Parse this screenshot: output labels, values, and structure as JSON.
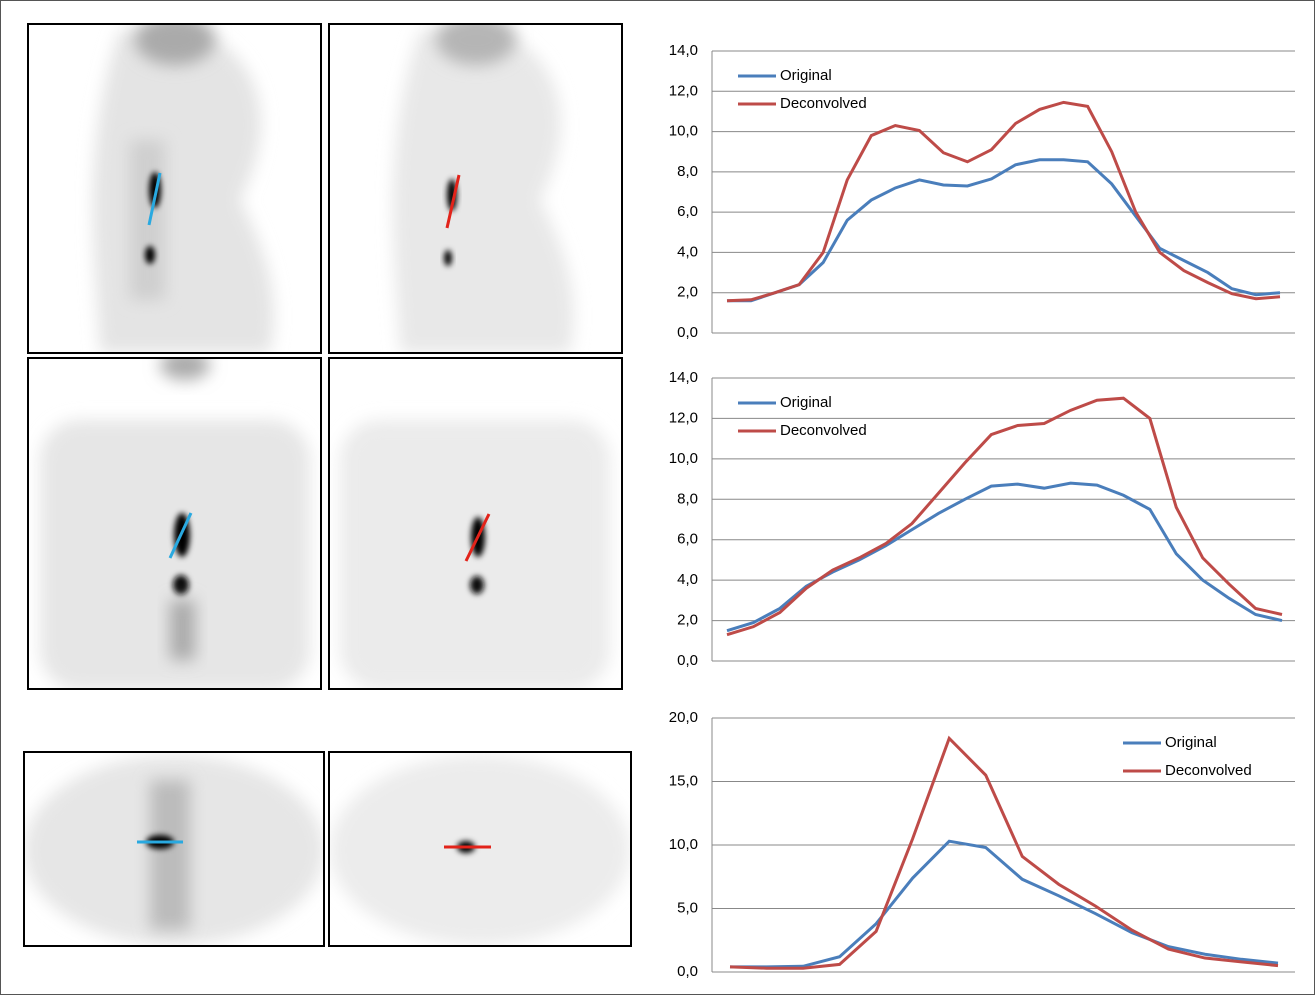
{
  "chart_data": [
    {
      "type": "line",
      "legend": "upper left",
      "grid": true,
      "categories": [
        null,
        null,
        null,
        null,
        null,
        null,
        null,
        null,
        null,
        null,
        null,
        null,
        null,
        null,
        null,
        null,
        null,
        null,
        null,
        null,
        null,
        null,
        null,
        null
      ],
      "series": [
        {
          "name": "Original",
          "color": "#4a7ebb",
          "values": [
            1.6,
            1.6,
            2.0,
            2.4,
            3.5,
            5.6,
            6.6,
            7.2,
            7.6,
            7.35,
            7.3,
            7.65,
            8.35,
            8.6,
            8.6,
            8.5,
            7.4,
            5.8,
            4.2,
            3.6,
            3.0,
            2.2,
            1.9,
            2.0
          ]
        },
        {
          "name": "Deconvolved",
          "color": "#be4b48",
          "values": [
            1.6,
            1.65,
            2.0,
            2.4,
            4.0,
            7.6,
            9.8,
            10.3,
            10.05,
            8.95,
            8.5,
            9.1,
            10.4,
            11.1,
            11.45,
            11.25,
            9.0,
            6.0,
            4.0,
            3.1,
            2.5,
            1.95,
            1.7,
            1.8
          ]
        }
      ],
      "ylim": [
        0,
        14
      ],
      "yticks": [
        {
          "value": 0,
          "label": "0,0"
        },
        {
          "value": 2,
          "label": "2,0"
        },
        {
          "value": 4,
          "label": "4,0"
        },
        {
          "value": 6,
          "label": "6,0"
        },
        {
          "value": 8,
          "label": "8,0"
        },
        {
          "value": 10,
          "label": "10,0"
        },
        {
          "value": 12,
          "label": "12,0"
        },
        {
          "value": 14,
          "label": "14,0"
        }
      ]
    },
    {
      "type": "line",
      "legend": "upper left",
      "grid": true,
      "categories": [
        null,
        null,
        null,
        null,
        null,
        null,
        null,
        null,
        null,
        null,
        null,
        null,
        null,
        null,
        null,
        null,
        null,
        null,
        null,
        null,
        null,
        null
      ],
      "series": [
        {
          "name": "Original",
          "color": "#4a7ebb",
          "values": [
            1.5,
            1.9,
            2.6,
            3.7,
            4.4,
            5.0,
            5.7,
            6.5,
            7.3,
            8.0,
            8.65,
            8.75,
            8.55,
            8.8,
            8.7,
            8.2,
            7.5,
            5.3,
            4.0,
            3.1,
            2.3,
            2.0
          ]
        },
        {
          "name": "Deconvolved",
          "color": "#be4b48",
          "values": [
            1.3,
            1.7,
            2.4,
            3.6,
            4.5,
            5.1,
            5.8,
            6.8,
            8.3,
            9.8,
            11.2,
            11.65,
            11.75,
            12.4,
            12.9,
            13.0,
            12.0,
            7.6,
            5.1,
            3.8,
            2.6,
            2.3
          ]
        }
      ],
      "ylim": [
        0,
        14
      ],
      "yticks": [
        {
          "value": 0,
          "label": "0,0"
        },
        {
          "value": 2,
          "label": "2,0"
        },
        {
          "value": 4,
          "label": "4,0"
        },
        {
          "value": 6,
          "label": "6,0"
        },
        {
          "value": 8,
          "label": "8,0"
        },
        {
          "value": 10,
          "label": "10,0"
        },
        {
          "value": 12,
          "label": "12,0"
        },
        {
          "value": 14,
          "label": "14,0"
        }
      ]
    },
    {
      "type": "line",
      "legend": "upper right",
      "grid": true,
      "categories": [
        null,
        null,
        null,
        null,
        null,
        null,
        null,
        null,
        null,
        null,
        null,
        null,
        null,
        null,
        null,
        null
      ],
      "series": [
        {
          "name": "Original",
          "color": "#4a7ebb",
          "values": [
            0.4,
            0.4,
            0.45,
            1.2,
            3.8,
            7.4,
            10.3,
            9.8,
            7.3,
            6.0,
            4.6,
            3.1,
            2.0,
            1.4,
            1.0,
            0.7
          ]
        },
        {
          "name": "Deconvolved",
          "color": "#be4b48",
          "values": [
            0.4,
            0.3,
            0.3,
            0.6,
            3.2,
            10.5,
            18.4,
            15.5,
            9.1,
            6.9,
            5.2,
            3.3,
            1.8,
            1.1,
            0.8,
            0.5
          ]
        }
      ],
      "ylim": [
        0,
        20
      ],
      "yticks": [
        {
          "value": 0,
          "label": "0,0"
        },
        {
          "value": 5,
          "label": "5,0"
        },
        {
          "value": 10,
          "label": "10,0"
        },
        {
          "value": 15,
          "label": "15,0"
        },
        {
          "value": 20,
          "label": "20,0"
        }
      ]
    }
  ]
}
